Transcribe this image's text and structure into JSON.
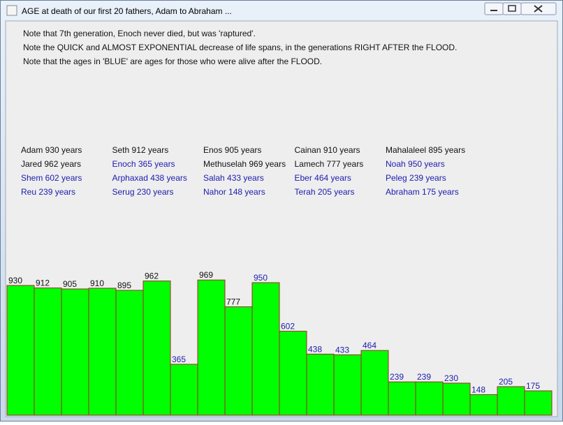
{
  "window_title": "AGE at death of our first 20 fathers, Adam to Abraham ...",
  "notes": [
    "Note that 7th generation, Enoch never died, but was 'raptured'.",
    "Note the QUICK and ALMOST EXPONENTIAL decrease of life spans, in the generations RIGHT AFTER the FLOOD.",
    "Note that the ages in 'BLUE' are ages for those who were alive after the FLOOD."
  ],
  "ages_list": [
    {
      "text": "Adam 930 years",
      "color": "#111111"
    },
    {
      "text": "Seth 912 years",
      "color": "#111111"
    },
    {
      "text": "Enos 905 years",
      "color": "#111111"
    },
    {
      "text": "Cainan 910 years",
      "color": "#111111"
    },
    {
      "text": "Mahalaleel 895 years",
      "color": "#111111"
    },
    {
      "text": "Jared 962 years",
      "color": "#111111"
    },
    {
      "text": "Enoch 365 years",
      "color": "#1c1cae"
    },
    {
      "text": "Methuselah 969 years",
      "color": "#111111"
    },
    {
      "text": "Lamech 777 years",
      "color": "#111111"
    },
    {
      "text": "Noah 950 years",
      "color": "#1c1cae"
    },
    {
      "text": "Shem 602 years",
      "color": "#1c1cae"
    },
    {
      "text": "Arphaxad 438 years",
      "color": "#1c1cae"
    },
    {
      "text": "Salah 433 years",
      "color": "#1c1cae"
    },
    {
      "text": "Eber 464 years",
      "color": "#1c1cae"
    },
    {
      "text": "Peleg 239 years",
      "color": "#1c1cae"
    },
    {
      "text": "Reu 239 years",
      "color": "#1c1cae"
    },
    {
      "text": "Serug 230 years",
      "color": "#1c1cae"
    },
    {
      "text": "Nahor 148 years",
      "color": "#1c1cae"
    },
    {
      "text": "Terah 205 years",
      "color": "#1c1cae"
    },
    {
      "text": "Abraham 175 years",
      "color": "#1c1cae"
    }
  ],
  "chart_data": {
    "type": "bar",
    "color": "#00ff00",
    "edge_color": "#a52a2a",
    "values": [
      930,
      912,
      905,
      910,
      895,
      962,
      365,
      969,
      777,
      950,
      602,
      438,
      433,
      464,
      239,
      239,
      230,
      148,
      205,
      175
    ],
    "label_colors": [
      "#111111",
      "#111111",
      "#111111",
      "#111111",
      "#111111",
      "#111111",
      "#1c1cae",
      "#111111",
      "#111111",
      "#1c1cae",
      "#1c1cae",
      "#1c1cae",
      "#1c1cae",
      "#1c1cae",
      "#1c1cae",
      "#1c1cae",
      "#1c1cae",
      "#1c1cae",
      "#1c1cae",
      "#1c1cae"
    ]
  }
}
